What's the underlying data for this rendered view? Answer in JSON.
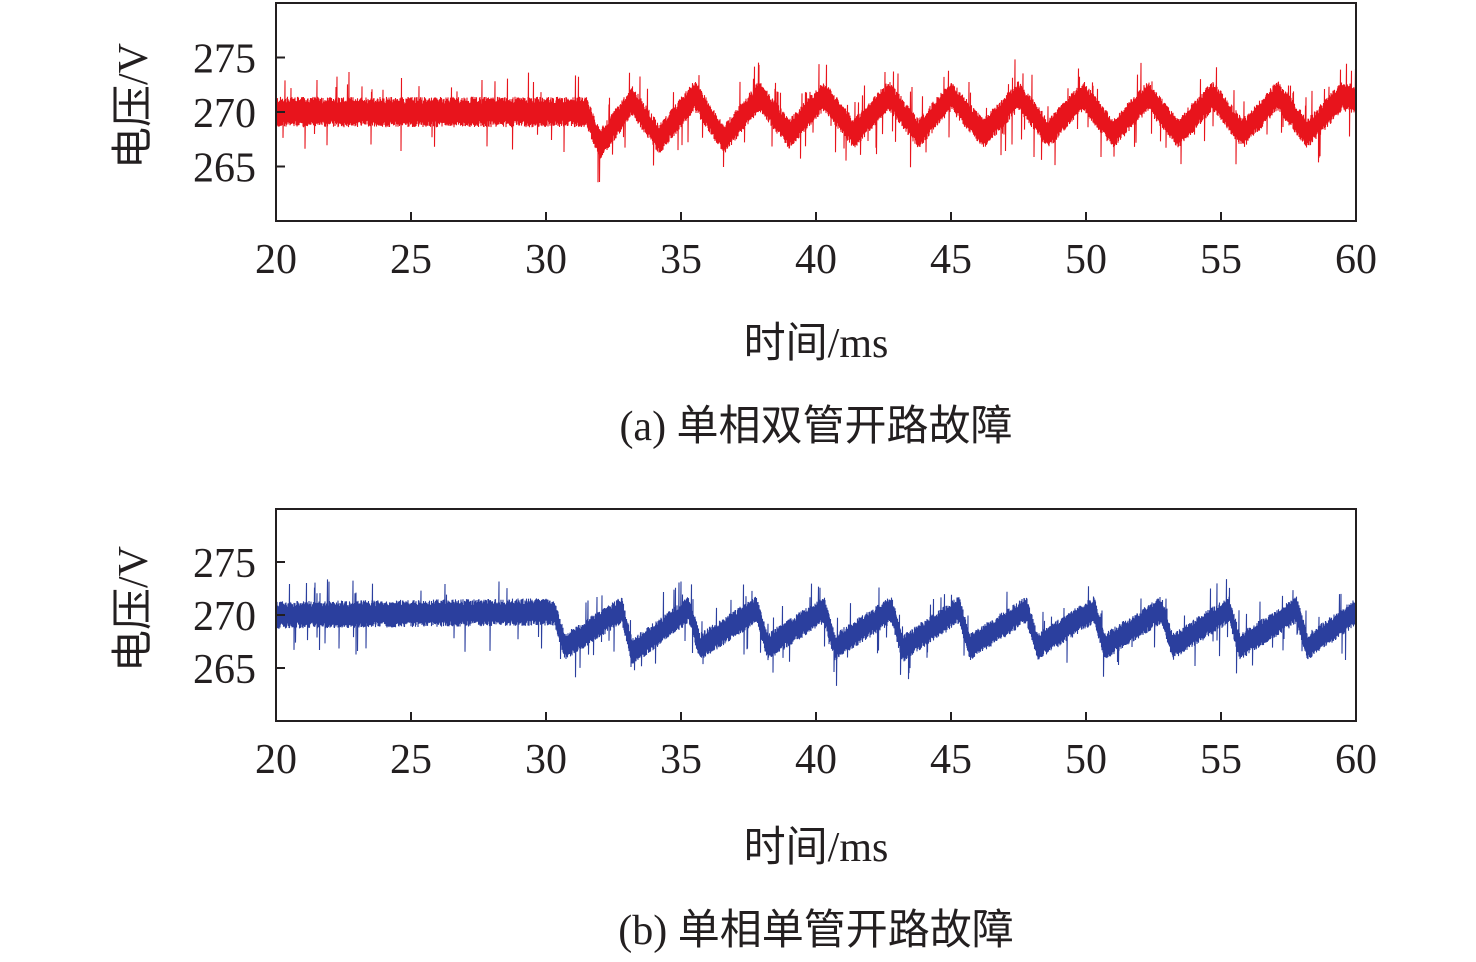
{
  "figure": {
    "captions": [
      "(a) 单相双管开路故障",
      "(b) 单相单管开路故障"
    ]
  },
  "chart_data": [
    {
      "type": "line",
      "panel": "(a)",
      "title": "",
      "caption": "(a) 单相双管开路故障",
      "xlabel": "时间/ms",
      "ylabel": "电压/V",
      "xlim": [
        20,
        60
      ],
      "ylim": [
        260,
        280
      ],
      "xticks": [
        20,
        25,
        30,
        35,
        40,
        45,
        50,
        55,
        60
      ],
      "yticks": [
        265,
        270,
        275
      ],
      "grid": false,
      "color": "#e8141c",
      "series": [
        {
          "x": [
            20,
            31.5,
            32.0,
            33.2,
            34.2,
            35.5,
            36.6,
            37.9,
            39.0,
            40.3,
            41.4,
            42.7,
            43.8,
            45.0,
            46.2,
            47.5,
            48.6,
            49.9,
            51.0,
            52.3,
            53.4,
            54.7,
            55.8,
            57.1,
            58.2,
            59.5,
            60
          ],
          "y": [
            270.0,
            270.0,
            267.0,
            271.0,
            267.5,
            271.5,
            267.5,
            271.5,
            268.0,
            271.5,
            268.0,
            271.5,
            268.0,
            271.5,
            268.0,
            271.5,
            268.0,
            271.5,
            268.0,
            271.5,
            268.0,
            271.5,
            268.0,
            271.5,
            268.0,
            271.5,
            271.0
          ],
          "band_halfwidth": 1.4
        }
      ]
    },
    {
      "type": "line",
      "panel": "(b)",
      "title": "",
      "caption": "(b) 单相单管开路故障",
      "xlabel": "时间/ms",
      "ylabel": "电压/V",
      "xlim": [
        20,
        60
      ],
      "ylim": [
        260,
        280
      ],
      "xticks": [
        20,
        25,
        30,
        35,
        40,
        45,
        50,
        55,
        60
      ],
      "yticks": [
        265,
        270,
        275
      ],
      "grid": false,
      "color": "#2b3f9e",
      "series": [
        {
          "x": [
            20,
            30.3,
            30.7,
            32.8,
            33.2,
            35.3,
            35.7,
            37.8,
            38.2,
            40.3,
            40.7,
            42.8,
            43.2,
            45.3,
            45.7,
            47.8,
            48.2,
            50.3,
            50.7,
            52.8,
            53.2,
            55.3,
            55.7,
            57.8,
            58.2,
            60
          ],
          "y": [
            270.0,
            270.3,
            267.0,
            270.5,
            266.5,
            270.5,
            267.0,
            270.5,
            267.0,
            270.5,
            267.0,
            270.5,
            266.8,
            270.5,
            267.0,
            270.5,
            267.0,
            270.5,
            267.0,
            270.5,
            267.0,
            270.5,
            267.0,
            270.5,
            267.0,
            270.3
          ],
          "band_halfwidth": 1.3
        }
      ]
    }
  ]
}
